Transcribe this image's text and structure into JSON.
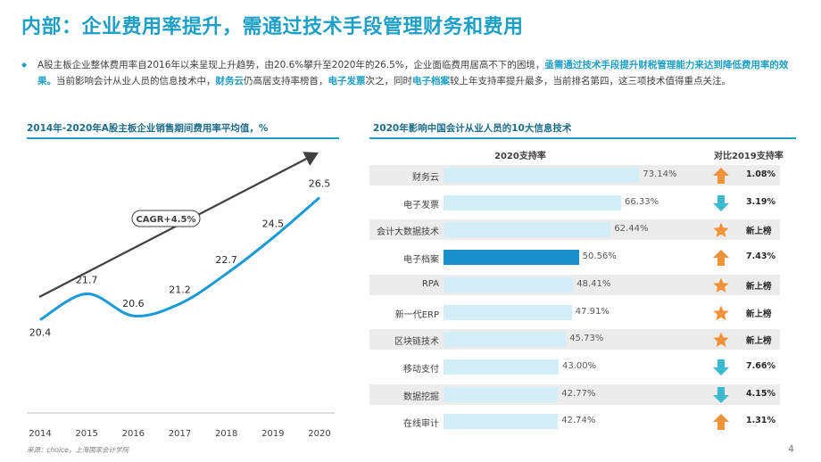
{
  "header": {
    "title": "内部：企业费用率提升，需通过技术手段管理财务和费用"
  },
  "intro": {
    "bullet": "◆",
    "segments": [
      {
        "text": "A股主板企业整体费用率自2016年以来呈现上升趋势，由20.6%攀升至2020年的26.5%，企业面临费用居高不下的困境，",
        "highlight": false
      },
      {
        "text": "亟需通过技术手段提升财税管理能力来达到降低费用率的效果。",
        "highlight": true
      },
      {
        "text": "当前影响会计从业人员的信息技术中，",
        "highlight": false
      },
      {
        "text": "财务云",
        "highlight": true
      },
      {
        "text": "仍高居支持率榜首，",
        "highlight": false
      },
      {
        "text": "电子发票",
        "highlight": true
      },
      {
        "text": "次之，同时",
        "highlight": false
      },
      {
        "text": "电子档案",
        "highlight": true
      },
      {
        "text": "较上年支持率提升最多，当前排名第四，这三项技术值得重点关注。",
        "highlight": false
      }
    ]
  },
  "left_section": {
    "title": "2014年-2020年A股主板企业销售期间费用率平均值，%"
  },
  "right_section": {
    "title": "2020年影响中国会计从业人员的10大信息技术",
    "col_support": "2020支持率",
    "col_compare": "对比2019支持率"
  },
  "colors": {
    "accent": "#1d9fc6",
    "line": "#1a9ad6",
    "bar_light": "#d4eef8",
    "bar_active": "#1a8ec8",
    "arrow_up": "#f0923a",
    "arrow_down": "#3bbad1",
    "star": "#f0923a"
  },
  "chart_data": [
    {
      "type": "line",
      "title": "2014年-2020年A股主板企业销售期间费用率平均值，%",
      "x": [
        "2014",
        "2015",
        "2016",
        "2017",
        "2018",
        "2019",
        "2020"
      ],
      "series": [
        {
          "values": [
            20.4,
            21.7,
            20.6,
            21.2,
            22.7,
            24.5,
            26.5
          ]
        }
      ],
      "annotation": "CAGR+4.5%",
      "ylim": [
        19,
        28
      ],
      "grid": false,
      "legend": "none"
    },
    {
      "type": "bar",
      "title": "2020年影响中国会计从业人员的10大信息技术",
      "categories": [
        "财务云",
        "电子发票",
        "会计大数据技术",
        "电子档案",
        "RPA",
        "新一代ERP",
        "区块链技术",
        "移动支付",
        "数据挖掘",
        "在线审计"
      ],
      "values": [
        73.14,
        66.33,
        62.44,
        50.56,
        48.41,
        47.91,
        45.73,
        43.0,
        42.77,
        42.74
      ],
      "value_labels": [
        "73.14%",
        "66.33%",
        "62.44%",
        "50.56%",
        "48.41%",
        "47.91%",
        "45.73%",
        "43.00%",
        "42.77%",
        "42.74%"
      ],
      "highlighted": "电子档案",
      "compare_2019": [
        {
          "icon": "arrow-up-icon",
          "label": "1.08%"
        },
        {
          "icon": "arrow-down-icon",
          "label": "3.19%"
        },
        {
          "icon": "star-icon",
          "label": "新上榜"
        },
        {
          "icon": "arrow-up-icon",
          "label": "7.43%"
        },
        {
          "icon": "star-icon",
          "label": "新上榜"
        },
        {
          "icon": "star-icon",
          "label": "新上榜"
        },
        {
          "icon": "star-icon",
          "label": "新上榜"
        },
        {
          "icon": "arrow-down-icon",
          "label": "7.66%"
        },
        {
          "icon": "arrow-down-icon",
          "label": "4.15%"
        },
        {
          "icon": "arrow-up-icon",
          "label": "1.31%"
        }
      ],
      "xlim": [
        0,
        100
      ]
    }
  ],
  "footer": {
    "source": "来源：choice，上海国家会计学院",
    "page_number": "4"
  }
}
